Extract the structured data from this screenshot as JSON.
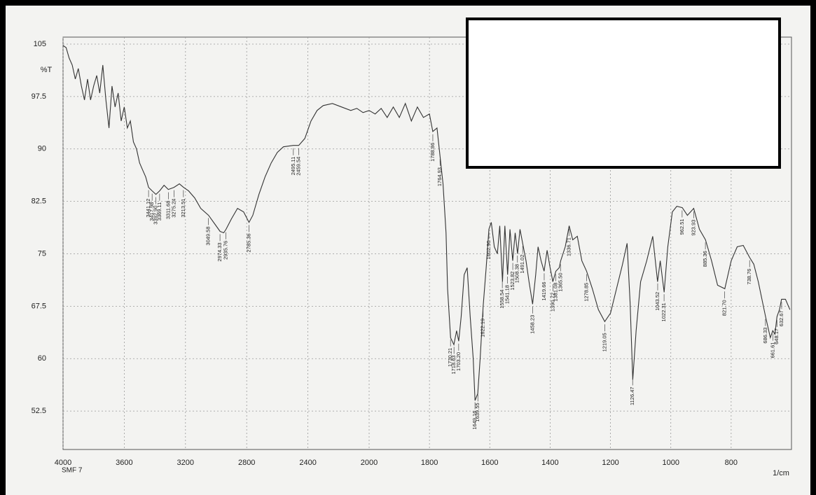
{
  "chart_data": {
    "type": "line",
    "ylabel": "%T",
    "xlabel": "1/cm",
    "sample_label": "SMF 7",
    "color": "#333333",
    "grid": true,
    "xlim": [
      4000,
      600
    ],
    "x_scale_change": 2000,
    "xticks": [
      4000,
      3600,
      3200,
      2800,
      2400,
      2000,
      1800,
      1600,
      1400,
      1200,
      1000,
      800
    ],
    "ylim": [
      47,
      106
    ],
    "yticks": [
      105,
      97.5,
      90,
      82.5,
      75,
      67.5,
      60,
      52.5
    ],
    "x": [
      4000,
      3980,
      3960,
      3940,
      3920,
      3900,
      3880,
      3860,
      3840,
      3820,
      3800,
      3780,
      3760,
      3740,
      3720,
      3700,
      3680,
      3660,
      3640,
      3620,
      3600,
      3580,
      3560,
      3540,
      3520,
      3500,
      3480,
      3460,
      3441,
      3418,
      3393,
      3369,
      3340,
      3312,
      3275,
      3240,
      3213,
      3180,
      3140,
      3100,
      3049,
      3000,
      2974,
      2950,
      2935,
      2900,
      2860,
      2820,
      2785,
      2760,
      2720,
      2680,
      2640,
      2600,
      2560,
      2495,
      2460,
      2420,
      2380,
      2340,
      2300,
      2240,
      2180,
      2120,
      2080,
      2040,
      2000,
      1980,
      1960,
      1940,
      1920,
      1900,
      1880,
      1860,
      1840,
      1820,
      1800,
      1789,
      1775,
      1765,
      1755,
      1745,
      1740,
      1730,
      1719,
      1710,
      1703,
      1695,
      1685,
      1675,
      1665,
      1655,
      1649,
      1640,
      1632,
      1622,
      1612,
      1603,
      1595,
      1585,
      1575,
      1567,
      1558,
      1550,
      1541,
      1533,
      1524,
      1516,
      1508,
      1500,
      1491,
      1480,
      1470,
      1458,
      1448,
      1440,
      1430,
      1420,
      1410,
      1400,
      1391,
      1381,
      1370,
      1365,
      1350,
      1337,
      1325,
      1310,
      1295,
      1279,
      1260,
      1240,
      1219,
      1200,
      1180,
      1160,
      1145,
      1135,
      1126,
      1115,
      1100,
      1080,
      1060,
      1044,
      1035,
      1022,
      1010,
      995,
      980,
      962,
      945,
      924,
      905,
      885,
      865,
      845,
      821,
      800,
      780,
      760,
      739,
      725,
      710,
      686,
      670,
      662,
      655,
      648,
      640,
      633,
      620,
      605
    ],
    "values": [
      104.8,
      104.5,
      103,
      102,
      100,
      101.5,
      99,
      97,
      100,
      97,
      99,
      100.5,
      98,
      102,
      97,
      93,
      99,
      96,
      98,
      94,
      96,
      93,
      94,
      91,
      90,
      88,
      87,
      86,
      84.5,
      84,
      83.5,
      84,
      84.8,
      84.2,
      84.5,
      85,
      84.5,
      84,
      83,
      81.5,
      80.5,
      79,
      78.2,
      78,
      78.5,
      80,
      81.5,
      81,
      79.5,
      80.5,
      83.5,
      86,
      88,
      89.5,
      90.3,
      90.5,
      90.5,
      91.5,
      94,
      95.5,
      96.2,
      96.5,
      96,
      95.5,
      95.8,
      95.2,
      95.5,
      95,
      95.8,
      94.5,
      96,
      94.5,
      96.5,
      94,
      96,
      94.5,
      95,
      92.5,
      93,
      89,
      85,
      78,
      70,
      63,
      62,
      64,
      62.5,
      66,
      72,
      73,
      66,
      60,
      54,
      55,
      60,
      67.5,
      73,
      78.5,
      79.5,
      76,
      75,
      79,
      71,
      79,
      72,
      78.5,
      74,
      78,
      75,
      78.5,
      76.5,
      74,
      71,
      67.8,
      72,
      76,
      74,
      72.5,
      75.5,
      73,
      71,
      72.5,
      73,
      74,
      76,
      79,
      77,
      77.5,
      74,
      72.5,
      70,
      67,
      65.3,
      66.5,
      70,
      73.5,
      76.5,
      68,
      57,
      64,
      71,
      74,
      77.5,
      71,
      74,
      69.5,
      76,
      81,
      81.8,
      81.6,
      80.5,
      81.5,
      78.5,
      77,
      74,
      70.5,
      70,
      74,
      76,
      76.2,
      74.5,
      73.5,
      71,
      66,
      63,
      64,
      63.5,
      66,
      67,
      68.5,
      68.5,
      67
    ],
    "annotations": [
      {
        "x": 3441.12,
        "text": "3441.12"
      },
      {
        "x": 3417.98,
        "text": "3417.98"
      },
      {
        "x": 3392.9,
        "text": "3392.90"
      },
      {
        "x": 3369.11,
        "text": "3369.11"
      },
      {
        "x": 3311.68,
        "text": "3311.68"
      },
      {
        "x": 3275.24,
        "text": "3275.24"
      },
      {
        "x": 3213.51,
        "text": "3213.51"
      },
      {
        "x": 3049.58,
        "text": "3049.58"
      },
      {
        "x": 2974.33,
        "text": "2974.33"
      },
      {
        "x": 2935.76,
        "text": "2935.76"
      },
      {
        "x": 2785.36,
        "text": "2785.36"
      },
      {
        "x": 2495.11,
        "text": "2495.11"
      },
      {
        "x": 2459.54,
        "text": "2459.54"
      },
      {
        "x": 1788.86,
        "text": "1788.86"
      },
      {
        "x": 1764.93,
        "text": "1764.93"
      },
      {
        "x": 1730.21,
        "text": "1730.21"
      },
      {
        "x": 1718.63,
        "text": "1718.63"
      },
      {
        "x": 1703.2,
        "text": "1703.20"
      },
      {
        "x": 1649.16,
        "text": "1649.16"
      },
      {
        "x": 1639.55,
        "text": "1639.55"
      },
      {
        "x": 1622.19,
        "text": "1622.19"
      },
      {
        "x": 1602.9,
        "text": "1602.90"
      },
      {
        "x": 1558.54,
        "text": "1558.54"
      },
      {
        "x": 1541.18,
        "text": "1541.18"
      },
      {
        "x": 1523.82,
        "text": "1523.82"
      },
      {
        "x": 1508.38,
        "text": "1508.38"
      },
      {
        "x": 1491.02,
        "text": "1491.02"
      },
      {
        "x": 1458.23,
        "text": "1458.23"
      },
      {
        "x": 1419.66,
        "text": "1419.66"
      },
      {
        "x": 1390.72,
        "text": "1390.72"
      },
      {
        "x": 1381.08,
        "text": "1381.08"
      },
      {
        "x": 1365.5,
        "text": "1365.50"
      },
      {
        "x": 1336.71,
        "text": "1336.71"
      },
      {
        "x": 1278.85,
        "text": "1278.85"
      },
      {
        "x": 1219.05,
        "text": "1219.05"
      },
      {
        "x": 1126.47,
        "text": "1126.47"
      },
      {
        "x": 1043.52,
        "text": "1043.52"
      },
      {
        "x": 1022.31,
        "text": "1022.31"
      },
      {
        "x": 962.51,
        "text": "962.51"
      },
      {
        "x": 923.93,
        "text": "923.93"
      },
      {
        "x": 885.36,
        "text": "885.36"
      },
      {
        "x": 821.7,
        "text": "821.70"
      },
      {
        "x": 738.76,
        "text": "738.76"
      },
      {
        "x": 686.33,
        "text": "686.33"
      },
      {
        "x": 661.61,
        "text": "661.61"
      },
      {
        "x": 648.17,
        "text": "648.17"
      },
      {
        "x": 632.67,
        "text": "632.67"
      }
    ]
  }
}
